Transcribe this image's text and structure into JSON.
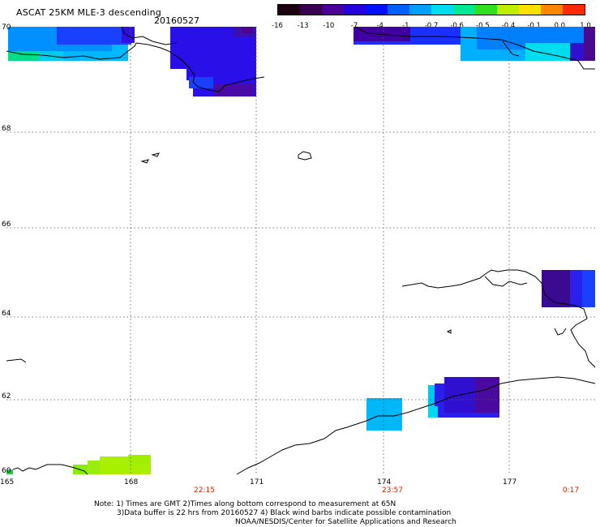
{
  "header": {
    "title": "ASCAT 25KM MLE-3 descending",
    "date": "20160527"
  },
  "colorbar": {
    "tick_labels": [
      "-16",
      "-13",
      "-10",
      "-7",
      "-4",
      "-1",
      "-0.7",
      "-0.6",
      "-0.5",
      "-0.4",
      "-0.1",
      "0.0",
      "1.0"
    ],
    "colors": [
      "#1a0010",
      "#3a0050",
      "#4a0099",
      "#2400dd",
      "#0010ff",
      "#0060ff",
      "#00a0ff",
      "#00ddee",
      "#00e890",
      "#30e020",
      "#c0ee00",
      "#ffe000",
      "#ff8800",
      "#ff2a00"
    ]
  },
  "axes": {
    "lon_labels": [
      "165",
      "168",
      "171",
      "174",
      "177"
    ],
    "lat_labels": [
      "70",
      "68",
      "66",
      "64",
      "62",
      "60"
    ],
    "time_labels": [
      "22:15",
      "23:57",
      "0:17"
    ]
  },
  "colors": {
    "time_label": "#cc2200",
    "grid": "#555555",
    "coast": "#000000"
  },
  "notes": {
    "line1": "Note: 1) Times are GMT 2)Times along bottom correspond to measurement at 65N",
    "line2": "3)Data buffer is 22 hrs from 20160527 4) Black wind barbs indicate possible contamination",
    "line3": "NOAA/NESDIS/Center for Satellite Applications and Research"
  }
}
